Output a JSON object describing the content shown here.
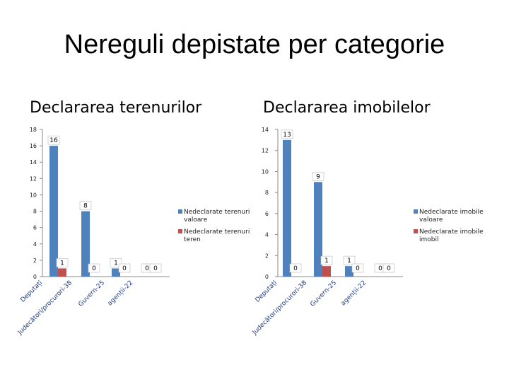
{
  "slide": {
    "title": "Nereguli depistate per categorie"
  },
  "colors": {
    "series1": "#4f81bd",
    "series2": "#c0504d",
    "axis": "#888888"
  },
  "chart_data": [
    {
      "type": "bar",
      "title": "Declararea terenurilor",
      "categories": [
        "Deputați",
        "Judecători/procurori-38",
        "Guvern-25",
        "agenții-22"
      ],
      "ylim": [
        0,
        18
      ],
      "yticks": [
        0,
        2,
        4,
        6,
        8,
        10,
        12,
        14,
        16,
        18
      ],
      "series": [
        {
          "name": "Nedeclarate terenuri valoare",
          "values": [
            16,
            8,
            1,
            0
          ]
        },
        {
          "name": "Nedeclarate terenuri teren",
          "values": [
            1,
            0,
            0,
            0
          ]
        }
      ],
      "legend": "right",
      "grid": false
    },
    {
      "type": "bar",
      "title": "Declararea imobilelor",
      "categories": [
        "Deputați",
        "Judecători/procurori-38",
        "Guvern-25",
        "agenții-22"
      ],
      "ylim": [
        0,
        14
      ],
      "yticks": [
        0,
        2,
        4,
        6,
        8,
        10,
        12,
        14
      ],
      "series": [
        {
          "name": "Nedeclarate imobile valoare",
          "values": [
            13,
            9,
            1,
            0
          ]
        },
        {
          "name": "Nedeclarate imobile imobil",
          "values": [
            0,
            1,
            0,
            0
          ]
        }
      ],
      "legend": "right",
      "grid": false
    }
  ]
}
